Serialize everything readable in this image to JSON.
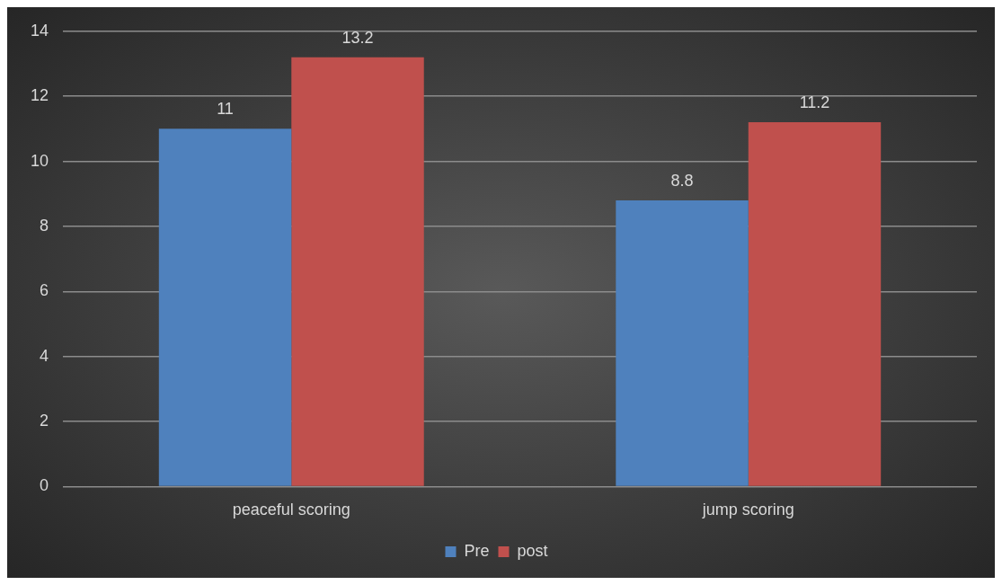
{
  "chart_data": {
    "type": "bar",
    "categories": [
      "peaceful scoring",
      "jump scoring"
    ],
    "series": [
      {
        "name": "Pre",
        "color": "#4f81bd",
        "values": [
          11,
          8.8
        ]
      },
      {
        "name": "post",
        "color": "#c0504d",
        "values": [
          13.2,
          11.2
        ]
      }
    ],
    "ylim": [
      0,
      14
    ],
    "yticks": [
      0,
      2,
      4,
      6,
      8,
      10,
      12,
      14
    ],
    "grid": "y",
    "legend": "bottom",
    "data_labels": true
  }
}
